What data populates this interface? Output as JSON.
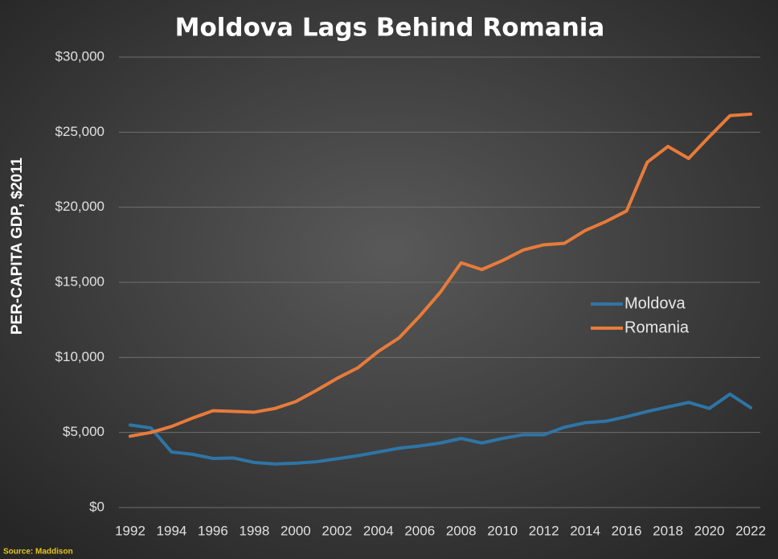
{
  "chart_data": {
    "type": "line",
    "title": "Moldova Lags Behind Romania",
    "y_label": "PER-CAPITA GDP, $2011",
    "source": "Source: Maddison",
    "x": [
      1992,
      1993,
      1994,
      1995,
      1996,
      1997,
      1998,
      1999,
      2000,
      2001,
      2002,
      2003,
      2004,
      2005,
      2006,
      2007,
      2008,
      2009,
      2010,
      2011,
      2012,
      2013,
      2014,
      2015,
      2016,
      2017,
      2018,
      2019,
      2020,
      2021,
      2022
    ],
    "xlim": [
      1992,
      2022
    ],
    "xticks": [
      1992,
      1994,
      1996,
      1998,
      2000,
      2002,
      2004,
      2006,
      2008,
      2010,
      2012,
      2014,
      2016,
      2018,
      2020,
      2022
    ],
    "ylim": [
      0,
      30000
    ],
    "yticks": [
      {
        "value": 0,
        "label": "$0"
      },
      {
        "value": 5000,
        "label": "$5,000"
      },
      {
        "value": 10000,
        "label": "$10,000"
      },
      {
        "value": 15000,
        "label": "$15,000"
      },
      {
        "value": 20000,
        "label": "$20,000"
      },
      {
        "value": 25000,
        "label": "$25,000"
      },
      {
        "value": 30000,
        "label": "$30,000"
      }
    ],
    "grid": true,
    "legend": "center-right",
    "series": [
      {
        "name": "Moldova",
        "color": "#2e75a6",
        "values": [
          5500,
          5300,
          3700,
          3550,
          3270,
          3300,
          3000,
          2900,
          2950,
          3050,
          3250,
          3450,
          3700,
          3950,
          4100,
          4300,
          4600,
          4300,
          4600,
          4850,
          4850,
          5350,
          5650,
          5750,
          6050,
          6400,
          6700,
          7000,
          6600,
          7550,
          6650
        ]
      },
      {
        "name": "Romania",
        "color": "#e87b3a",
        "values": [
          4750,
          5000,
          5400,
          5950,
          6450,
          6400,
          6350,
          6600,
          7050,
          7800,
          8600,
          9300,
          10400,
          11300,
          12750,
          14350,
          16300,
          15850,
          16450,
          17150,
          17500,
          17600,
          18450,
          19050,
          19750,
          23000,
          24050,
          23250,
          24700,
          26100,
          26200
        ]
      }
    ]
  }
}
